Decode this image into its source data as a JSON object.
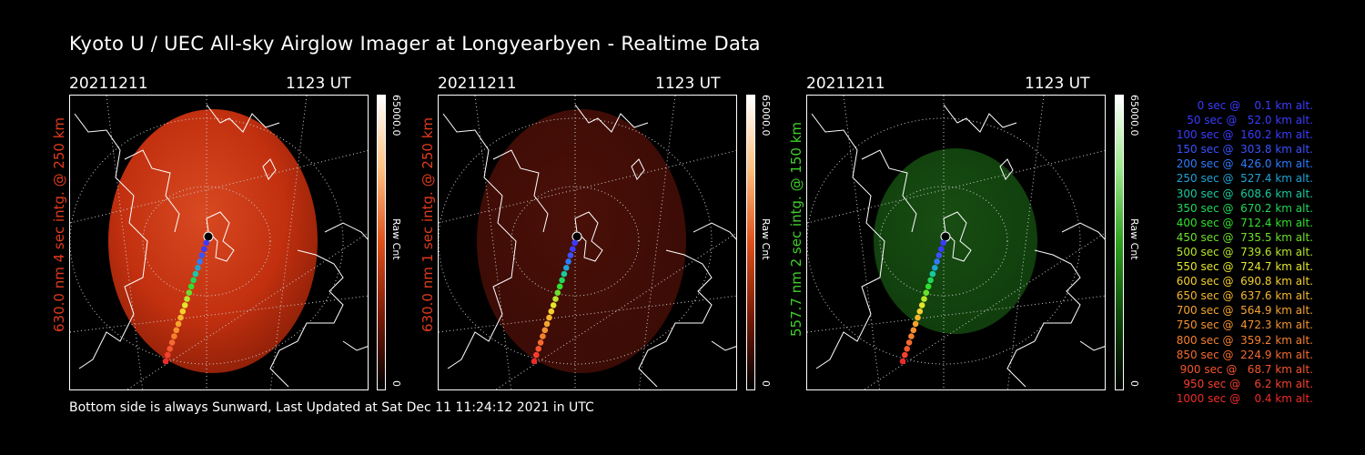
{
  "title": "Kyoto U / UEC All-sky Airglow Imager at Longyearbyen - Realtime Data",
  "footer": "Bottom side is always Sunward, Last Updated at Sat Dec 11 11:24:12 2021 in UTC",
  "panels": [
    {
      "date": "20211211",
      "time": "1123 UT",
      "ylabel": "630.0 nm 4 sec intg. @ 250 km",
      "ylabel_color": "#e03a1e",
      "cbar_max": "65000.0",
      "cbar_min": "0",
      "cbar_label": "Raw Cnt",
      "fill": "#c2300f",
      "brightness": "bright"
    },
    {
      "date": "20211211",
      "time": "1123 UT",
      "ylabel": "630.0 nm 1 sec intg. @ 250 km",
      "ylabel_color": "#e03a1e",
      "cbar_max": "65000.0",
      "cbar_min": "0",
      "cbar_label": "Raw Cnt",
      "fill": "#3a0b05",
      "brightness": "dim"
    },
    {
      "date": "20211211",
      "time": "1123 UT",
      "ylabel": "557.7 nm 2 sec intg. @ 150 km",
      "ylabel_color": "#3fcf2a",
      "cbar_max": "65000.0",
      "cbar_min": "0",
      "cbar_label": "Raw Cnt",
      "fill": "#0f3d0c",
      "brightness": "green"
    }
  ],
  "legend": [
    {
      "text": "   0 sec @    0.1 km alt.",
      "color": "#3b3bff"
    },
    {
      "text": "  50 sec @   52.0 km alt.",
      "color": "#3b3bff"
    },
    {
      "text": " 100 sec @  160.2 km alt.",
      "color": "#3b3bff"
    },
    {
      "text": " 150 sec @  303.8 km alt.",
      "color": "#3b52ff"
    },
    {
      "text": " 200 sec @  426.0 km alt.",
      "color": "#2f7bff"
    },
    {
      "text": " 250 sec @  527.4 km alt.",
      "color": "#1fa3d6"
    },
    {
      "text": " 300 sec @  608.6 km alt.",
      "color": "#19c9a0"
    },
    {
      "text": " 350 sec @  670.2 km alt.",
      "color": "#20d75a"
    },
    {
      "text": " 400 sec @  712.4 km alt.",
      "color": "#31e02c"
    },
    {
      "text": " 450 sec @  735.5 km alt.",
      "color": "#6be02c"
    },
    {
      "text": " 500 sec @  739.6 km alt.",
      "color": "#b8e62a"
    },
    {
      "text": " 550 sec @  724.7 km alt.",
      "color": "#e3e62a"
    },
    {
      "text": " 600 sec @  690.8 km alt.",
      "color": "#f4d02e"
    },
    {
      "text": " 650 sec @  637.6 km alt.",
      "color": "#f5b72f"
    },
    {
      "text": " 700 sec @  564.9 km alt.",
      "color": "#f5a52f"
    },
    {
      "text": " 750 sec @  472.3 km alt.",
      "color": "#f5922f"
    },
    {
      "text": " 800 sec @  359.2 km alt.",
      "color": "#f5802f"
    },
    {
      "text": " 850 sec @  224.9 km alt.",
      "color": "#f56a2f"
    },
    {
      "text": " 900 sec @   68.7 km alt.",
      "color": "#f5552f"
    },
    {
      "text": " 950 sec @    6.2 km alt.",
      "color": "#f5402f"
    },
    {
      "text": "1000 sec @    0.4 km alt.",
      "color": "#f02a2a"
    }
  ]
}
